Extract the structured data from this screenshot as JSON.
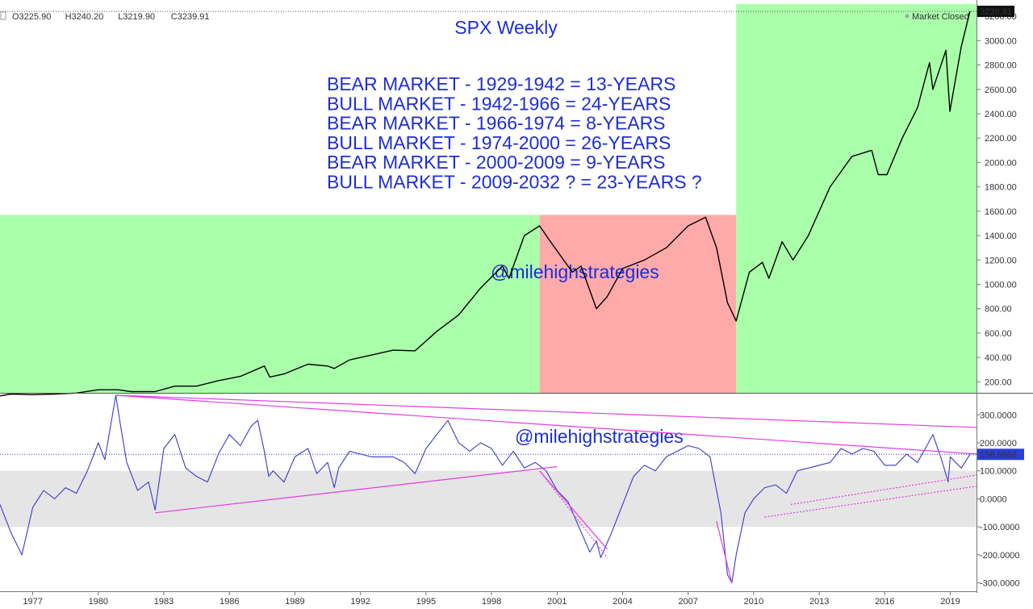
{
  "chart_data": [
    {
      "type": "line",
      "title": "SPX Weekly",
      "status": "Market Closed",
      "ohlc": {
        "o_label": "O",
        "open": "3225.90",
        "h_label": "H",
        "high": "3240.20",
        "l_label": "L",
        "low": "3219.90",
        "c_label": "C",
        "close": "3239.91"
      },
      "last_value": "3239.91",
      "watermark": "@milehighstrategies",
      "annotations": [
        "BEAR MARKET - 1929-1942 = 13-YEARS",
        "BULL MARKET - 1942-1966 = 24-YEARS",
        "BEAR MARKET - 1966-1974 = 8-YEARS",
        "BULL MARKET - 1974-2000 = 26-YEARS",
        "BEAR MARKET - 2000-2009 = 9-YEARS",
        "BULL MARKET - 2009-2032 ? = 23-YEARS ?"
      ],
      "xlim": [
        1975.5,
        2020.2
      ],
      "ylim": [
        110,
        3300
      ],
      "yticks": [
        "200.00",
        "400.00",
        "600.00",
        "800.00",
        "1000.00",
        "1200.00",
        "1400.00",
        "1600.00",
        "1800.00",
        "2000.00",
        "2200.00",
        "2400.00",
        "2600.00",
        "2800.00",
        "3000.00",
        "3200.00"
      ],
      "shaded_regions": [
        {
          "label": "bull",
          "x_start": 1975.5,
          "x_end": 2000.2,
          "y_top": 1570,
          "color": "#aaffaa"
        },
        {
          "label": "bear",
          "x_start": 2000.2,
          "x_end": 2009.2,
          "y_top": 1570,
          "color": "#ffaaaa"
        },
        {
          "label": "bull",
          "x_start": 2009.2,
          "x_end": 2020.2,
          "y_top": 3300,
          "color": "#aaffaa"
        }
      ],
      "series": [
        {
          "color": "#000000",
          "x": [
            1975.5,
            1976,
            1977,
            1978,
            1979,
            1980,
            1980.9,
            1981.5,
            1982.6,
            1983.5,
            1984.5,
            1985.5,
            1986.5,
            1987.6,
            1987.85,
            1988.5,
            1989.6,
            1990.5,
            1990.8,
            1991.5,
            1992.5,
            1993.5,
            1994.5,
            1995.5,
            1996.5,
            1997.5,
            1998.5,
            1998.8,
            1999.5,
            2000.2,
            2000.7,
            2001.7,
            2002.1,
            2002.8,
            2003.3,
            2004,
            2005,
            2006,
            2007,
            2007.8,
            2008.3,
            2008.8,
            2009.2,
            2009.8,
            2010.4,
            2010.7,
            2011.3,
            2011.8,
            2012.5,
            2013.5,
            2014.5,
            2015.4,
            2015.7,
            2016.1,
            2016.8,
            2017.5,
            2018.05,
            2018.2,
            2018.8,
            2018.98,
            2019.5,
            2019.9
          ],
          "y": [
            85,
            100,
            95,
            100,
            108,
            135,
            135,
            120,
            120,
            165,
            165,
            210,
            245,
            330,
            240,
            265,
            345,
            330,
            310,
            380,
            420,
            460,
            455,
            615,
            750,
            970,
            1150,
            1050,
            1400,
            1480,
            1350,
            1100,
            1150,
            800,
            900,
            1130,
            1200,
            1300,
            1480,
            1550,
            1300,
            850,
            700,
            1100,
            1180,
            1050,
            1350,
            1200,
            1400,
            1800,
            2050,
            2100,
            1900,
            1900,
            2200,
            2450,
            2820,
            2600,
            2920,
            2420,
            2950,
            3239.91
          ]
        }
      ]
    },
    {
      "type": "line",
      "last_value": "158.8666",
      "xlim": [
        1975.5,
        2020.2
      ],
      "ylim": [
        -330,
        370
      ],
      "yticks": [
        "-300.0000",
        "-200.0000",
        "-100.0000",
        "0.0000",
        "100.0000",
        "200.0000",
        "300.0000"
      ],
      "band": [
        -100,
        100
      ],
      "xticks": [
        "1977",
        "1980",
        "1983",
        "1986",
        "1989",
        "1992",
        "1995",
        "1998",
        "2001",
        "2004",
        "2007",
        "2010",
        "2013",
        "2016",
        "2019"
      ],
      "xtick_values": [
        1977,
        1980,
        1983,
        1986,
        1989,
        1992,
        1995,
        1998,
        2001,
        2004,
        2007,
        2010,
        2013,
        2016,
        2019
      ],
      "series": [
        {
          "color": "#3a3ad0",
          "x": [
            1975.5,
            1976,
            1976.5,
            1977,
            1977.5,
            1978,
            1978.5,
            1979,
            1979.5,
            1980,
            1980.3,
            1980.8,
            1981,
            1981.3,
            1981.8,
            1982.3,
            1982.6,
            1983,
            1983.5,
            1984,
            1984.5,
            1985,
            1985.5,
            1986,
            1986.5,
            1987,
            1987.3,
            1987.6,
            1987.8,
            1988,
            1988.5,
            1989,
            1989.6,
            1990,
            1990.5,
            1990.8,
            1991,
            1991.5,
            1992,
            1992.5,
            1993,
            1993.5,
            1994,
            1994.5,
            1995,
            1995.5,
            1996,
            1996.5,
            1997,
            1997.5,
            1998,
            1998.5,
            1999,
            1999.5,
            2000,
            2000.5,
            2001,
            2001.5,
            2002,
            2002.5,
            2002.8,
            2003,
            2003.5,
            2004,
            2004.5,
            2005,
            2005.5,
            2006,
            2006.5,
            2007,
            2007.5,
            2008,
            2008.5,
            2008.8,
            2009,
            2009.2,
            2009.6,
            2010,
            2010.5,
            2011,
            2011.5,
            2012,
            2012.5,
            2013,
            2013.5,
            2014,
            2014.5,
            2015,
            2015.5,
            2016,
            2016.5,
            2017,
            2017.5,
            2018,
            2018.2,
            2018.6,
            2018.9,
            2019,
            2019.5,
            2019.9
          ],
          "y": [
            -20,
            -120,
            -200,
            -30,
            30,
            0,
            40,
            20,
            100,
            200,
            140,
            370,
            270,
            130,
            30,
            60,
            -40,
            180,
            230,
            110,
            80,
            60,
            160,
            230,
            190,
            260,
            280,
            170,
            80,
            100,
            60,
            150,
            180,
            90,
            130,
            40,
            110,
            170,
            160,
            150,
            150,
            150,
            130,
            90,
            180,
            230,
            280,
            200,
            170,
            200,
            180,
            120,
            170,
            110,
            130,
            100,
            30,
            -10,
            -100,
            -190,
            -150,
            -210,
            -120,
            -20,
            80,
            120,
            100,
            150,
            170,
            190,
            180,
            150,
            -50,
            -270,
            -300,
            -200,
            -50,
            0,
            40,
            50,
            20,
            100,
            110,
            120,
            130,
            180,
            160,
            180,
            170,
            120,
            120,
            160,
            130,
            200,
            230,
            140,
            60,
            150,
            110,
            158.87
          ]
        }
      ],
      "trendlines": [
        {
          "x1": 1980.8,
          "y1": 370,
          "x2": 2020.2,
          "y2": 255,
          "color": "#e33be3",
          "dashed": false
        },
        {
          "x1": 1980.8,
          "y1": 370,
          "x2": 2020.2,
          "y2": 160,
          "color": "#e33be3",
          "dashed": false
        },
        {
          "x1": 1982.6,
          "y1": -50,
          "x2": 2001,
          "y2": 115,
          "color": "#e33be3",
          "dashed": false
        },
        {
          "x1": 2000.2,
          "y1": 100,
          "x2": 2003.3,
          "y2": -180,
          "color": "#e33be3",
          "dashed": false
        },
        {
          "x1": 2000.2,
          "y1": 100,
          "x2": 2003.3,
          "y2": -210,
          "color": "#e33be3",
          "dashed": true
        },
        {
          "x1": 2008.3,
          "y1": -80,
          "x2": 2009,
          "y2": -300,
          "color": "#e33be3",
          "dashed": false
        },
        {
          "x1": 2010.5,
          "y1": -65,
          "x2": 2020.2,
          "y2": 45,
          "color": "#e33be3",
          "dashed": true
        },
        {
          "x1": 2011.7,
          "y1": -20,
          "x2": 2020.2,
          "y2": 85,
          "color": "#e33be3",
          "dashed": true
        }
      ],
      "watermark": "@milehighstrategies"
    }
  ]
}
